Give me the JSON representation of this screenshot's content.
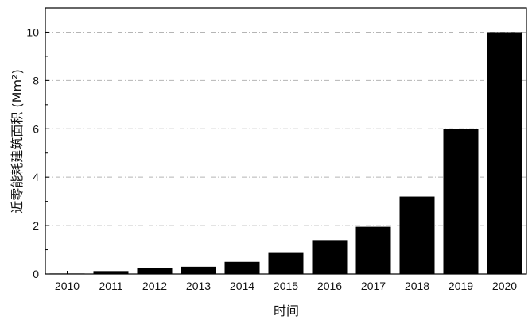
{
  "chart_data": {
    "type": "bar",
    "categories": [
      "2010",
      "2011",
      "2012",
      "2013",
      "2014",
      "2015",
      "2016",
      "2017",
      "2018",
      "2019",
      "2020"
    ],
    "values": [
      0.02,
      0.12,
      0.25,
      0.3,
      0.5,
      0.9,
      1.4,
      1.95,
      3.2,
      6.0,
      10.0
    ],
    "xlabel": "时间",
    "ylabel": "近零能耗建筑面积 (Mm²)",
    "ylim": [
      0,
      11
    ],
    "yticks": [
      0,
      2,
      4,
      6,
      8,
      10
    ],
    "grid": "horizontal dash-dot",
    "bar_color": "#000000"
  }
}
